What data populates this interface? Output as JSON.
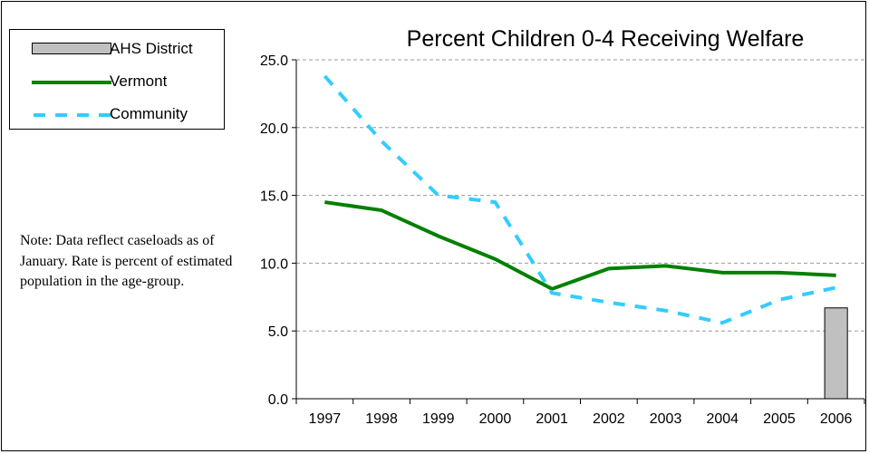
{
  "chart_data": {
    "type": "line",
    "title": "Percent Children 0-4 Receiving Welfare",
    "note": "Note: Data reflect caseloads as of January.  Rate is percent of estimated population in the age-group.",
    "x": [
      "1997",
      "1998",
      "1999",
      "2000",
      "2001",
      "2002",
      "2003",
      "2004",
      "2005",
      "2006"
    ],
    "ylim": [
      0,
      25
    ],
    "yticks": [
      "0.0",
      "5.0",
      "10.0",
      "15.0",
      "20.0",
      "25.0"
    ],
    "ytick_values": [
      0,
      5,
      10,
      15,
      20,
      25
    ],
    "grid": true,
    "legend_position": "top-left",
    "series": [
      {
        "name": "AHS District",
        "kind": "bar",
        "color": "#c0c0c0",
        "values": [
          null,
          null,
          null,
          null,
          null,
          null,
          null,
          null,
          null,
          6.7
        ]
      },
      {
        "name": "Vermont",
        "kind": "line",
        "style": "solid",
        "color": "#008000",
        "values": [
          14.5,
          13.9,
          12.0,
          10.3,
          8.1,
          9.6,
          9.8,
          9.3,
          9.3,
          9.1
        ]
      },
      {
        "name": "Community",
        "kind": "line",
        "style": "dashed",
        "color": "#33ccff",
        "values": [
          23.8,
          19.0,
          15.0,
          14.5,
          7.8,
          7.1,
          6.5,
          5.6,
          7.3,
          8.2
        ]
      }
    ]
  }
}
